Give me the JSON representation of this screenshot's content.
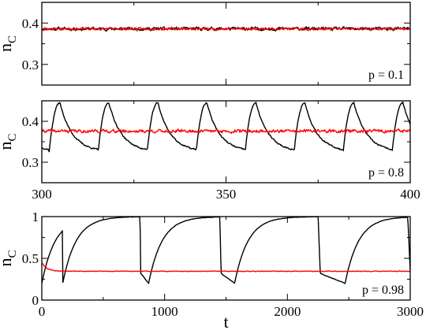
{
  "figure": {
    "xlabel": "t"
  },
  "chart_data": [
    {
      "type": "line",
      "ylabel_main": "n",
      "ylabel_sub": "C",
      "annotation": "p = 0.1",
      "xlim": [
        300,
        400
      ],
      "ylim": [
        0.25,
        0.45
      ],
      "yticks": [
        0.3,
        0.4
      ],
      "ytick_labels": [
        "0.3",
        "0.4"
      ],
      "xticks": [
        300,
        325,
        350,
        375,
        400
      ],
      "xtick_labels": [],
      "grid": false,
      "series": [
        {
          "color": "#000000",
          "kind": "noise",
          "mean": 0.386,
          "amp": 0.004,
          "seed": 11,
          "period": 0,
          "values_desc": "fluctuating around 0.386"
        },
        {
          "color": "#ff0000",
          "kind": "noise",
          "mean": 0.386,
          "amp": 0.003,
          "seed": 23,
          "period": 0,
          "values_desc": "fluctuating around 0.386"
        }
      ]
    },
    {
      "type": "line",
      "ylabel_main": "n",
      "ylabel_sub": "C",
      "annotation": "p = 0.8",
      "xlim": [
        300,
        400
      ],
      "ylim": [
        0.25,
        0.45
      ],
      "yticks": [
        0.3,
        0.4
      ],
      "ytick_labels": [
        "0.3",
        "0.4"
      ],
      "xticks": [
        300,
        325,
        350,
        375,
        400
      ],
      "xtick_labels": [
        "300",
        "350",
        "400"
      ],
      "xtick_label_values": [
        300,
        350,
        400
      ],
      "grid": false,
      "series": [
        {
          "color": "#000000",
          "kind": "sawtooth",
          "period": 13.3,
          "phase": 300,
          "low": 0.325,
          "high": 0.445,
          "seed": 37
        },
        {
          "color": "#ff0000",
          "kind": "noise",
          "mean": 0.376,
          "amp": 0.004,
          "seed": 41,
          "period": 0
        }
      ]
    },
    {
      "type": "line",
      "ylabel_main": "n",
      "ylabel_sub": "C",
      "annotation": "p = 0.98",
      "xlim": [
        0,
        3000
      ],
      "ylim": [
        0,
        1
      ],
      "yticks": [
        0,
        0.5,
        1
      ],
      "ytick_labels": [
        "0",
        "0.5",
        "1"
      ],
      "xticks": [
        0,
        500,
        1000,
        1500,
        2000,
        2500,
        3000
      ],
      "xtick_labels": [
        "0",
        "1000",
        "2000",
        "3000"
      ],
      "xtick_label_values": [
        0,
        1000,
        2000,
        3000
      ],
      "grid": false,
      "series": [
        {
          "color": "#000000",
          "kind": "relax",
          "starts": [
            0,
            170,
            870,
            1570,
            2470
          ],
          "drops": [
            170,
            800,
            1450,
            2250,
            2980
          ],
          "low": 0.2,
          "high": 1.0,
          "seed": 53
        },
        {
          "color": "#ff0000",
          "kind": "decay-noise",
          "start": 0.45,
          "mean": 0.345,
          "amp": 0.006,
          "seed": 61
        }
      ]
    }
  ]
}
